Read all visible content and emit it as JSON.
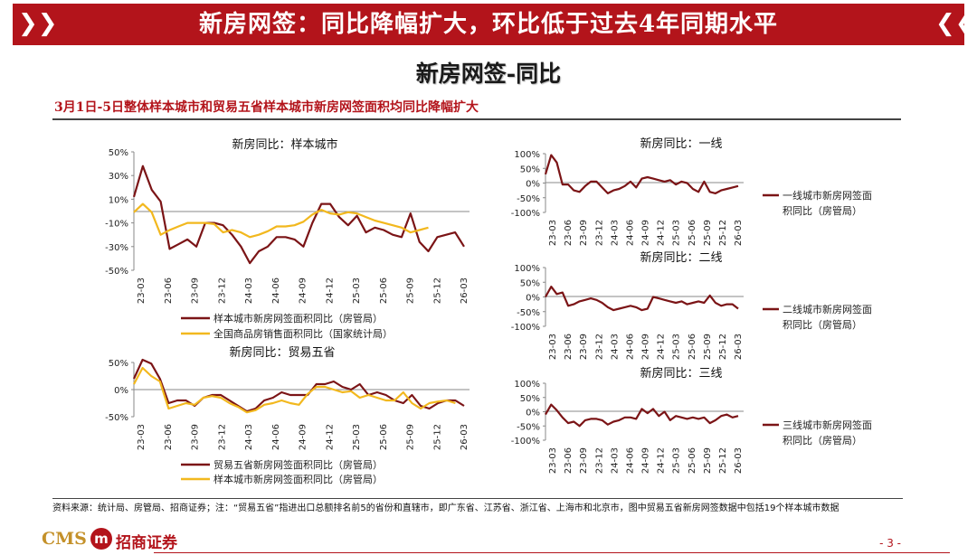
{
  "banner": {
    "title": "新房网签：同比降幅扩大，环比低于过去4年同期水平"
  },
  "subtitle": "新房网签-同比",
  "headline": "3月1日-5日整体样本城市和贸易五省样本城市新房网签面积均同比降幅扩大",
  "footnote": "资料来源：统计局、房管局、招商证券；注：“贸易五省”指进出口总额排名前5的省份和直辖市，即广东省、江苏省、浙江省、上海市和北京市，图中贸易五省新房网签数据中包括19个样本城市数据",
  "logo": {
    "latin": "CMS",
    "emblem": "m",
    "cn": "招商证券"
  },
  "page_number": "- 3 -",
  "colors": {
    "banner": "#b3141b",
    "series_red": "#7b1416",
    "series_yellow": "#f2b81e"
  },
  "chart_data": [
    {
      "id": "sample",
      "type": "line",
      "title": "新房同比：样本城市",
      "ylim": [
        -50,
        50
      ],
      "yticks": [
        "50%",
        "30%",
        "10%",
        "-10%",
        "-30%",
        "-50%"
      ],
      "xticks": [
        "23-03",
        "23-06",
        "23-09",
        "23-12",
        "24-03",
        "24-06",
        "24-09",
        "24-12",
        "25-03",
        "25-06",
        "25-09",
        "25-12",
        "26-03"
      ],
      "series": [
        {
          "name": "样本城市新房网签面积同比（房管局）",
          "color": "#7b1416",
          "values": [
            12,
            38,
            18,
            8,
            -32,
            -28,
            -24,
            -30,
            -10,
            -10,
            -12,
            -20,
            -30,
            -44,
            -34,
            -30,
            -22,
            -22,
            -24,
            -30,
            -10,
            6,
            6,
            -5,
            -12,
            -4,
            -18,
            -14,
            -16,
            -20,
            -22,
            -2,
            -26,
            -34,
            -22,
            -20,
            -18,
            -30
          ]
        },
        {
          "name": "全国商品房销售面积同比（国家统计局）",
          "color": "#f2b81e",
          "values": [
            -1,
            6,
            -1,
            -20,
            -16,
            -13,
            -10,
            -10,
            -10,
            -11,
            -18,
            -16,
            -18,
            -22,
            -20,
            -17,
            -13,
            -13,
            -12,
            -9,
            -3,
            1,
            -2,
            -3,
            -1,
            -2,
            -5,
            -8,
            -10,
            -12,
            -14,
            -18,
            -16,
            -14
          ]
        }
      ]
    },
    {
      "id": "tier1",
      "type": "line",
      "title": "新房同比：一线",
      "ylim": [
        -100,
        100
      ],
      "yticks": [
        "100%",
        "50%",
        "0%",
        "-50%",
        "-100%"
      ],
      "xticks": [
        "23-03",
        "23-06",
        "23-09",
        "23-12",
        "24-03",
        "24-06",
        "24-09",
        "24-12",
        "25-03",
        "25-06",
        "25-09",
        "25-12",
        "26-03"
      ],
      "series": [
        {
          "name": "一线城市新房网签面积同比（房管局）",
          "color": "#7b1416",
          "values": [
            30,
            95,
            70,
            -5,
            -5,
            -25,
            -30,
            -10,
            5,
            5,
            -15,
            -35,
            -25,
            -20,
            -10,
            5,
            -15,
            15,
            20,
            15,
            10,
            5,
            10,
            -5,
            5,
            0,
            -20,
            -30,
            5,
            -30,
            -35,
            -25,
            -20,
            -15,
            -10
          ]
        }
      ]
    },
    {
      "id": "tier2",
      "type": "line",
      "title": "新房同比：二线",
      "ylim": [
        -100,
        100
      ],
      "yticks": [
        "100%",
        "50%",
        "0%",
        "-50%",
        "-100%"
      ],
      "xticks": [
        "23-03",
        "23-06",
        "23-09",
        "23-12",
        "24-03",
        "24-06",
        "24-09",
        "24-12",
        "25-03",
        "25-06",
        "25-09",
        "25-12",
        "26-03"
      ],
      "series": [
        {
          "name": "二线城市新房网签面积同比（房管局）",
          "color": "#7b1416",
          "values": [
            0,
            35,
            10,
            15,
            -30,
            -25,
            -15,
            -10,
            -5,
            -10,
            -20,
            -35,
            -45,
            -40,
            -35,
            -30,
            -35,
            -45,
            -40,
            0,
            -5,
            -10,
            -15,
            -20,
            -15,
            -25,
            -20,
            -15,
            -20,
            5,
            -20,
            -30,
            -25,
            -25,
            -40
          ]
        }
      ]
    },
    {
      "id": "tier3",
      "type": "line",
      "title": "新房同比：三线",
      "ylim": [
        -100,
        100
      ],
      "yticks": [
        "100%",
        "50%",
        "0%",
        "-50%",
        "-100%"
      ],
      "xticks": [
        "23-03",
        "23-06",
        "23-09",
        "23-12",
        "24-03",
        "24-06",
        "24-09",
        "24-12",
        "25-03",
        "25-06",
        "25-09",
        "25-12",
        "26-03"
      ],
      "series": [
        {
          "name": "三线城市新房网签面积同比（房管局）",
          "color": "#7b1416",
          "values": [
            -10,
            25,
            5,
            -20,
            -40,
            -35,
            -50,
            -30,
            -25,
            -25,
            -30,
            -45,
            -35,
            -30,
            -20,
            -20,
            -25,
            10,
            -5,
            10,
            -15,
            0,
            -30,
            -15,
            -20,
            -25,
            -20,
            -25,
            -20,
            -40,
            -30,
            -15,
            -10,
            -20,
            -15
          ]
        }
      ]
    },
    {
      "id": "trade5",
      "type": "line",
      "title": "新房同比：贸易五省",
      "ylim": [
        -50,
        50
      ],
      "yticks": [
        "50%",
        "0%",
        "-50%"
      ],
      "xticks": [
        "23-03",
        "23-06",
        "23-09",
        "23-12",
        "24-03",
        "24-06",
        "24-09",
        "24-12",
        "25-03",
        "25-06",
        "25-09",
        "25-12",
        "26-03"
      ],
      "series": [
        {
          "name": "贸易五省新房网签面积同比（房管局）",
          "color": "#7b1416",
          "values": [
            20,
            55,
            48,
            20,
            -25,
            -20,
            -20,
            -30,
            -15,
            -10,
            -10,
            -20,
            -30,
            -40,
            -35,
            -20,
            -15,
            -5,
            -10,
            -10,
            -10,
            10,
            10,
            15,
            5,
            0,
            10,
            -10,
            -5,
            -10,
            -20,
            -25,
            -10,
            -30,
            -35,
            -25,
            -20,
            -20,
            -30
          ]
        },
        {
          "name": "样本城市新房网签面积同比（房管局）",
          "color": "#f2b81e",
          "values": [
            10,
            40,
            25,
            15,
            -35,
            -30,
            -25,
            -28,
            -15,
            -12,
            -15,
            -25,
            -32,
            -42,
            -38,
            -28,
            -25,
            -20,
            -25,
            -28,
            -8,
            5,
            5,
            0,
            -5,
            -3,
            -15,
            -10,
            -15,
            -20,
            -20,
            -5,
            -25,
            -35,
            -25,
            -22,
            -20,
            -25
          ]
        }
      ]
    }
  ]
}
